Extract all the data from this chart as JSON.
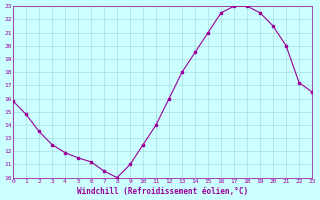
{
  "x": [
    0,
    1,
    2,
    3,
    4,
    5,
    6,
    7,
    8,
    9,
    10,
    11,
    12,
    13,
    14,
    15,
    16,
    17,
    18,
    19,
    20,
    21,
    22,
    23
  ],
  "y": [
    15.8,
    14.8,
    13.5,
    12.5,
    11.9,
    11.5,
    11.2,
    10.5,
    10.0,
    11.0,
    12.5,
    14.0,
    16.0,
    18.0,
    19.5,
    21.0,
    22.5,
    23.0,
    23.0,
    22.5,
    21.5,
    20.0,
    17.2,
    16.5
  ],
  "line_color": "#990099",
  "marker": "s",
  "marker_size": 2,
  "bg_color": "#ccffff",
  "grid_color": "#aadddd",
  "xlabel": "Windchill (Refroidissement éolien,°C)",
  "xlabel_color": "#990099",
  "tick_color": "#990099",
  "ylim": [
    10,
    23
  ],
  "xlim": [
    0,
    23
  ],
  "yticks": [
    10,
    11,
    12,
    13,
    14,
    15,
    16,
    17,
    18,
    19,
    20,
    21,
    22,
    23
  ],
  "xticks": [
    0,
    1,
    2,
    3,
    4,
    5,
    6,
    7,
    8,
    9,
    10,
    11,
    12,
    13,
    14,
    15,
    16,
    17,
    18,
    19,
    20,
    21,
    22,
    23
  ]
}
